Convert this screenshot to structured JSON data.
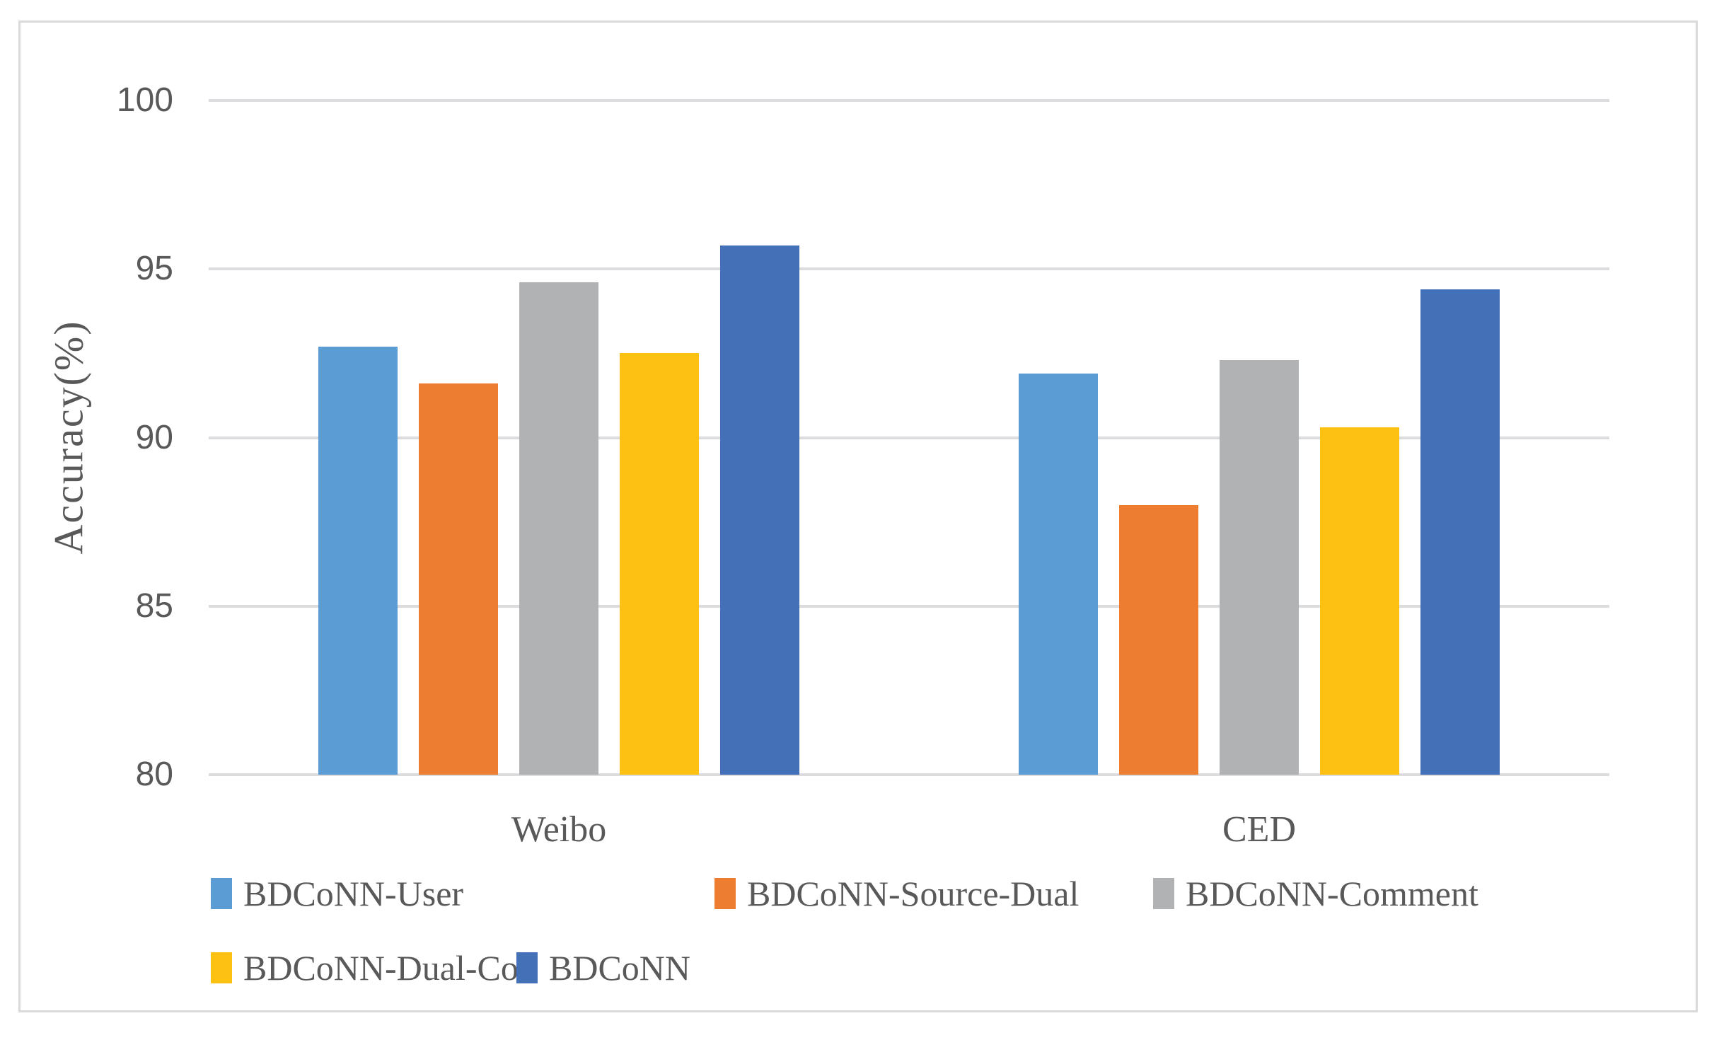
{
  "chart_data": {
    "type": "bar",
    "title": "",
    "xlabel": "",
    "ylabel": "Accuracy(%)",
    "categories": [
      "Weibo",
      "CED"
    ],
    "series": [
      {
        "name": "BDCoNN-User",
        "color": "#5B9CD5",
        "values": [
          92.7,
          91.9
        ]
      },
      {
        "name": "BDCoNN-Source-Dual",
        "color": "#ED7D31",
        "values": [
          91.6,
          88.0
        ]
      },
      {
        "name": "BDCoNN-Comment",
        "color": "#B1B2B4",
        "values": [
          94.6,
          92.3
        ]
      },
      {
        "name": "BDCoNN-Dual-Co",
        "color": "#FDC113",
        "values": [
          92.5,
          90.3
        ]
      },
      {
        "name": "BDCoNN",
        "color": "#4470B8",
        "values": [
          95.7,
          94.4
        ]
      }
    ],
    "ylim": [
      80,
      100
    ],
    "yticks": [
      80,
      85,
      90,
      95,
      100
    ],
    "grid": true,
    "gridline_color": "#DCDCDE",
    "frame_color": "#D9D9D9",
    "text_color": "#595959",
    "legend_position": "bottom"
  }
}
